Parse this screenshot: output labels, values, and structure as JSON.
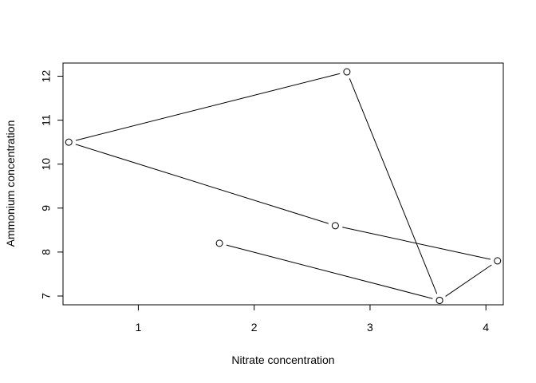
{
  "chart_data": {
    "type": "line",
    "title": "",
    "xlabel": "Nitrate concentration",
    "ylabel": "Ammonium concentration",
    "xlim": [
      0.35,
      4.15
    ],
    "ylim": [
      6.8,
      12.3
    ],
    "xticks": [
      "1",
      "2",
      "3",
      "4"
    ],
    "yticks": [
      "7",
      "8",
      "9",
      "10",
      "11",
      "12"
    ],
    "grid": false,
    "legend": "none",
    "marker": "open-circle",
    "series": [
      {
        "x": [
          1.7,
          3.6,
          4.1,
          2.7,
          0.4,
          2.8,
          3.6
        ],
        "y": [
          8.2,
          6.9,
          7.8,
          8.6,
          10.5,
          12.1,
          6.9
        ]
      }
    ],
    "colors": {
      "line": "#000000",
      "marker_fill": "#ffffff",
      "axis": "#000000"
    }
  }
}
